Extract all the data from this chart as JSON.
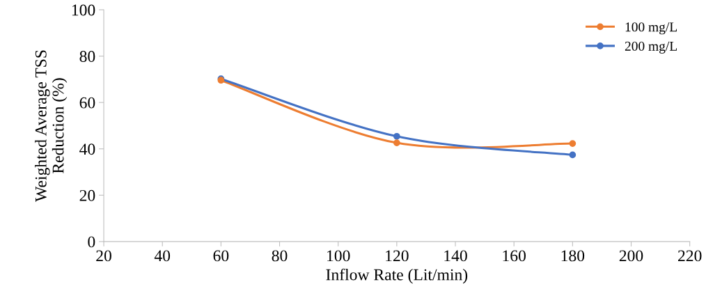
{
  "chart_data": {
    "type": "line",
    "xlabel": "Inflow Rate (Lit/min)",
    "ylabel": "Weighted Average TSS\nReduction (%)",
    "x": [
      60,
      120,
      180
    ],
    "series": [
      {
        "name": "100 mg/L",
        "color": "#ed7d31",
        "values": [
          69.6,
          42.6,
          42.3
        ]
      },
      {
        "name": "200 mg/L",
        "color": "#4472c4",
        "values": [
          70.2,
          45.4,
          37.4
        ]
      }
    ],
    "xlim": [
      20,
      220
    ],
    "xticks": [
      20,
      40,
      60,
      80,
      100,
      120,
      140,
      160,
      180,
      200,
      220
    ],
    "ylim": [
      0,
      100
    ],
    "yticks": [
      0,
      20,
      40,
      60,
      80,
      100
    ],
    "grid": false,
    "legend": "top right",
    "marker": "circle",
    "line_style": "solid"
  }
}
